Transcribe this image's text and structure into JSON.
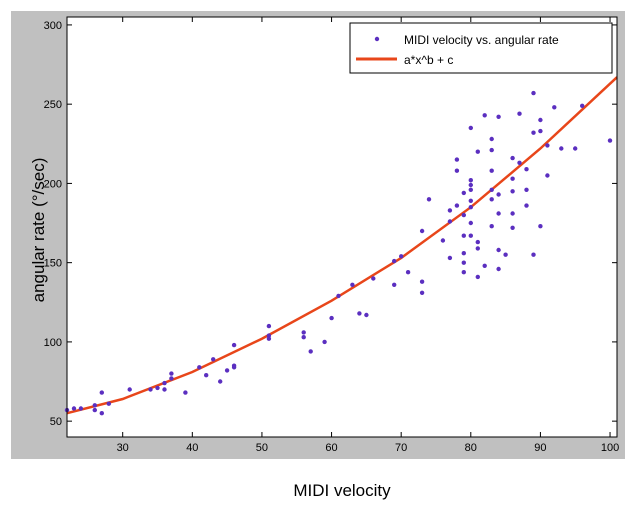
{
  "chart_data": {
    "type": "scatter",
    "title": "",
    "xlabel": "MIDI velocity",
    "ylabel": "angular rate (°/sec)",
    "xlim": [
      22,
      101
    ],
    "ylim": [
      40,
      305
    ],
    "x_ticks": [
      30,
      40,
      50,
      60,
      70,
      80,
      90,
      100
    ],
    "y_ticks": [
      50,
      100,
      150,
      200,
      250,
      300
    ],
    "grid": false,
    "legend_position": "top-right",
    "series": [
      {
        "name": "MIDI velocity vs. angular rate",
        "kind": "scatter",
        "color": "#5b2fc0",
        "points": [
          [
            22,
            57
          ],
          [
            23,
            58
          ],
          [
            24,
            58
          ],
          [
            26,
            57
          ],
          [
            26,
            60
          ],
          [
            27,
            68
          ],
          [
            27,
            55
          ],
          [
            28,
            61
          ],
          [
            31,
            70
          ],
          [
            34,
            70
          ],
          [
            35,
            71
          ],
          [
            36,
            74
          ],
          [
            36,
            70
          ],
          [
            37,
            77
          ],
          [
            37,
            80
          ],
          [
            39,
            68
          ],
          [
            41,
            84
          ],
          [
            42,
            79
          ],
          [
            43,
            89
          ],
          [
            44,
            75
          ],
          [
            45,
            82
          ],
          [
            46,
            85
          ],
          [
            46,
            84
          ],
          [
            46,
            98
          ],
          [
            51,
            110
          ],
          [
            51,
            104
          ],
          [
            51,
            102
          ],
          [
            56,
            106
          ],
          [
            56,
            103
          ],
          [
            57,
            94
          ],
          [
            59,
            100
          ],
          [
            60,
            115
          ],
          [
            61,
            129
          ],
          [
            63,
            136
          ],
          [
            64,
            118
          ],
          [
            65,
            117
          ],
          [
            66,
            140
          ],
          [
            69,
            136
          ],
          [
            69,
            151
          ],
          [
            70,
            154
          ],
          [
            71,
            144
          ],
          [
            73,
            138
          ],
          [
            73,
            131
          ],
          [
            73,
            170
          ],
          [
            74,
            190
          ],
          [
            76,
            164
          ],
          [
            77,
            183
          ],
          [
            77,
            176
          ],
          [
            77,
            153
          ],
          [
            78,
            208
          ],
          [
            78,
            186
          ],
          [
            78,
            215
          ],
          [
            79,
            150
          ],
          [
            79,
            194
          ],
          [
            79,
            180
          ],
          [
            79,
            156
          ],
          [
            79,
            144
          ],
          [
            79,
            167
          ],
          [
            80,
            235
          ],
          [
            80,
            202
          ],
          [
            80,
            199
          ],
          [
            80,
            196
          ],
          [
            80,
            189
          ],
          [
            80,
            185
          ],
          [
            80,
            175
          ],
          [
            80,
            167
          ],
          [
            81,
            220
          ],
          [
            81,
            159
          ],
          [
            81,
            163
          ],
          [
            81,
            141
          ],
          [
            82,
            243
          ],
          [
            82,
            148
          ],
          [
            83,
            228
          ],
          [
            83,
            221
          ],
          [
            83,
            208
          ],
          [
            83,
            196
          ],
          [
            83,
            190
          ],
          [
            83,
            173
          ],
          [
            84,
            242
          ],
          [
            84,
            193
          ],
          [
            84,
            181
          ],
          [
            84,
            158
          ],
          [
            84,
            146
          ],
          [
            85,
            155
          ],
          [
            86,
            216
          ],
          [
            86,
            203
          ],
          [
            86,
            195
          ],
          [
            86,
            181
          ],
          [
            86,
            172
          ],
          [
            87,
            244
          ],
          [
            87,
            213
          ],
          [
            88,
            209
          ],
          [
            88,
            196
          ],
          [
            88,
            186
          ],
          [
            89,
            257
          ],
          [
            89,
            232
          ],
          [
            89,
            155
          ],
          [
            90,
            240
          ],
          [
            90,
            233
          ],
          [
            90,
            173
          ],
          [
            91,
            224
          ],
          [
            91,
            205
          ],
          [
            92,
            248
          ],
          [
            93,
            222
          ],
          [
            95,
            222
          ],
          [
            96,
            249
          ],
          [
            100,
            227
          ]
        ]
      },
      {
        "name": "a*x^b + c",
        "kind": "line",
        "color": "#e8461a",
        "points": [
          [
            22,
            55
          ],
          [
            30,
            64
          ],
          [
            40,
            81
          ],
          [
            50,
            102
          ],
          [
            60,
            126
          ],
          [
            70,
            153
          ],
          [
            80,
            185
          ],
          [
            90,
            222
          ],
          [
            101,
            267
          ]
        ]
      }
    ]
  }
}
